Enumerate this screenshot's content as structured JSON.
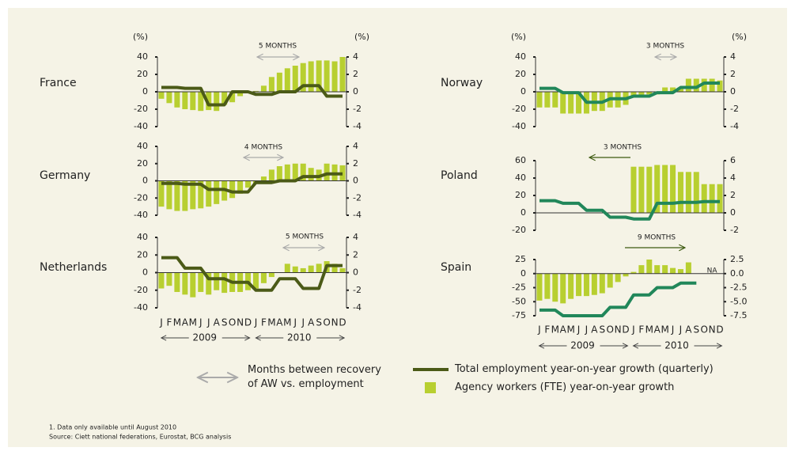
{
  "chart_data": [
    {
      "type": "bar_line",
      "title": "France",
      "ylabel": "(%)",
      "y2label": "(%)",
      "annotation": "5 MONTHS",
      "ylim": [
        -40,
        40
      ],
      "yticks": [
        40,
        20,
        0,
        -20,
        -40
      ],
      "y2lim": [
        -4,
        4
      ],
      "y2ticks": [
        4,
        2,
        0,
        -2,
        -4
      ],
      "series": [
        {
          "type": "bar",
          "color": "#b8cf30",
          "values": [
            -8,
            -13,
            -18,
            -20,
            -21,
            -22,
            -21,
            -22,
            -15,
            -12,
            -5,
            0,
            1,
            7,
            17,
            22,
            27,
            30,
            33,
            35,
            36,
            36,
            35,
            40
          ]
        },
        {
          "type": "line",
          "axis": "y2",
          "color": "#4b5a17",
          "values": [
            0.5,
            0.5,
            0.5,
            0.4,
            0.4,
            0.4,
            -1.5,
            -1.5,
            -1.5,
            0,
            0,
            0,
            -0.3,
            -0.3,
            -0.3,
            0,
            0,
            0,
            0.7,
            0.7,
            0.7,
            -0.5,
            -0.5,
            -0.5
          ]
        }
      ]
    },
    {
      "type": "bar_line",
      "title": "Germany",
      "annotation": "4 MONTHS",
      "ylim": [
        -40,
        40
      ],
      "yticks": [
        40,
        20,
        0,
        -20,
        -40
      ],
      "y2lim": [
        -4,
        4
      ],
      "y2ticks": [
        4,
        2,
        0,
        -2,
        -4
      ],
      "series": [
        {
          "type": "bar",
          "color": "#b8cf30",
          "values": [
            -30,
            -33,
            -35,
            -35,
            -33,
            -32,
            -30,
            -27,
            -23,
            -20,
            -15,
            -8,
            -3,
            5,
            13,
            17,
            19,
            20,
            20,
            15,
            13,
            20,
            19,
            18
          ]
        },
        {
          "type": "line",
          "axis": "y2",
          "color": "#4b5a17",
          "values": [
            -0.3,
            -0.3,
            -0.3,
            -0.4,
            -0.4,
            -0.4,
            -1,
            -1,
            -1,
            -1.3,
            -1.3,
            -1.3,
            -0.2,
            -0.2,
            -0.2,
            0,
            0,
            0,
            0.5,
            0.5,
            0.5,
            0.8,
            0.8,
            0.8
          ]
        }
      ]
    },
    {
      "type": "bar_line",
      "title": "Netherlands",
      "annotation": "5 MONTHS",
      "categories": [
        "J",
        "F",
        "M",
        "A",
        "M",
        "J",
        "J",
        "A",
        "S",
        "O",
        "N",
        "D",
        "J",
        "F",
        "M",
        "A",
        "M",
        "J",
        "J",
        "A",
        "S",
        "O",
        "N",
        "D"
      ],
      "years": [
        "2009",
        "2010"
      ],
      "ylim": [
        -40,
        40
      ],
      "yticks": [
        40,
        20,
        0,
        -20,
        -40
      ],
      "y2lim": [
        -4,
        4
      ],
      "y2ticks": [
        4,
        2,
        0,
        -2,
        -4
      ],
      "series": [
        {
          "type": "bar",
          "color": "#b8cf30",
          "values": [
            -18,
            -15,
            -22,
            -25,
            -28,
            -22,
            -25,
            -20,
            -23,
            -22,
            -22,
            -20,
            -18,
            -12,
            -5,
            0,
            10,
            7,
            5,
            8,
            10,
            13,
            10,
            5
          ]
        },
        {
          "type": "line",
          "axis": "y2",
          "color": "#4b5a17",
          "values": [
            1.7,
            1.7,
            1.7,
            0.5,
            0.5,
            0.5,
            -0.7,
            -0.7,
            -0.7,
            -1.1,
            -1.1,
            -1.1,
            -2,
            -2,
            -2,
            -0.7,
            -0.7,
            -0.7,
            -1.8,
            -1.8,
            -1.8,
            0.8,
            0.8,
            0.8
          ]
        }
      ]
    },
    {
      "type": "bar_line",
      "title": "Norway",
      "ylabel": "(%)",
      "y2label": "(%)",
      "annotation": "3 MONTHS",
      "ylim": [
        -40,
        40
      ],
      "yticks": [
        40,
        20,
        0,
        -20,
        -40
      ],
      "y2lim": [
        -4,
        4
      ],
      "y2ticks": [
        4,
        2,
        0,
        -2,
        -4
      ],
      "series": [
        {
          "type": "bar",
          "color": "#b8cf30",
          "values": [
            -18,
            -18,
            -18,
            -25,
            -25,
            -25,
            -25,
            -22,
            -22,
            -18,
            -18,
            -15,
            -5,
            -5,
            -3,
            -3,
            5,
            5,
            5,
            15,
            15,
            15,
            15,
            13
          ]
        },
        {
          "type": "line",
          "axis": "y2",
          "color": "#21875a",
          "values": [
            0.4,
            0.4,
            0.4,
            -0.1,
            -0.1,
            -0.1,
            -1.2,
            -1.2,
            -1.2,
            -0.8,
            -0.8,
            -0.8,
            -0.5,
            -0.5,
            -0.5,
            -0.1,
            -0.1,
            -0.1,
            0.5,
            0.5,
            0.5,
            1,
            1,
            1
          ]
        }
      ]
    },
    {
      "type": "bar_line",
      "title": "Poland",
      "annotation": "3 MONTHS",
      "ylim": [
        -20,
        60
      ],
      "yticks": [
        60,
        40,
        20,
        0,
        -20
      ],
      "y2lim": [
        -2,
        6
      ],
      "y2ticks": [
        6,
        4,
        2,
        0,
        -2
      ],
      "series": [
        {
          "type": "bar",
          "color": "#b8cf30",
          "values": [
            null,
            null,
            null,
            null,
            null,
            null,
            null,
            null,
            null,
            null,
            null,
            null,
            53,
            53,
            53,
            55,
            55,
            55,
            47,
            47,
            47,
            33,
            33,
            33
          ]
        },
        {
          "type": "line",
          "axis": "y2",
          "color": "#21875a",
          "values": [
            1.4,
            1.4,
            1.4,
            1.1,
            1.1,
            1.1,
            0.3,
            0.3,
            0.3,
            -0.5,
            -0.5,
            -0.5,
            -0.7,
            -0.7,
            -0.7,
            1.1,
            1.1,
            1.1,
            1.2,
            1.2,
            1.2,
            1.3,
            1.3,
            1.3
          ]
        }
      ]
    },
    {
      "type": "bar_line",
      "title": "Spain",
      "annotation": "9 MONTHS",
      "note": "NA",
      "categories": [
        "J",
        "F",
        "M",
        "A",
        "M",
        "J",
        "J",
        "A",
        "S",
        "O",
        "N",
        "D",
        "J",
        "F",
        "M",
        "A",
        "M",
        "J",
        "J",
        "A",
        "S",
        "O",
        "N",
        "D"
      ],
      "years": [
        "2009",
        "2010"
      ],
      "ylim": [
        -75,
        25
      ],
      "yticks": [
        25,
        0,
        -25,
        -50,
        -75
      ],
      "y2lim": [
        -7.5,
        2.5
      ],
      "y2ticks": [
        2.5,
        {
          "value": 0,
          "label": "0.0"
        },
        -2.5,
        {
          "value": -5,
          "label": "-5.0"
        },
        -7.5
      ],
      "series": [
        {
          "type": "bar",
          "color": "#b8cf30",
          "values": [
            -48,
            -45,
            -50,
            -53,
            -45,
            -40,
            -40,
            -38,
            -35,
            -25,
            -15,
            -5,
            3,
            15,
            25,
            15,
            15,
            10,
            8,
            20,
            null,
            null,
            null,
            null
          ]
        },
        {
          "type": "line",
          "axis": "y2",
          "color": "#21875a",
          "values": [
            -6.5,
            -6.5,
            -6.5,
            -7.5,
            -7.5,
            -7.5,
            -7.5,
            -7.5,
            -7.5,
            -6,
            -6,
            -6,
            -3.8,
            -3.8,
            -3.8,
            -2.5,
            -2.5,
            -2.5,
            -1.7,
            -1.7,
            -1.7,
            null,
            null,
            null
          ]
        }
      ]
    }
  ],
  "legend": {
    "arrow": "Months between recovery of AW vs. employment",
    "line": "Total employment year-on-year growth (quarterly)",
    "bar": "Agency workers (FTE) year-on-year growth"
  },
  "footnotes": [
    "1. Data only available until August 2010",
    "Source: Ciett national federations, Eurostat, BCG analysis"
  ]
}
